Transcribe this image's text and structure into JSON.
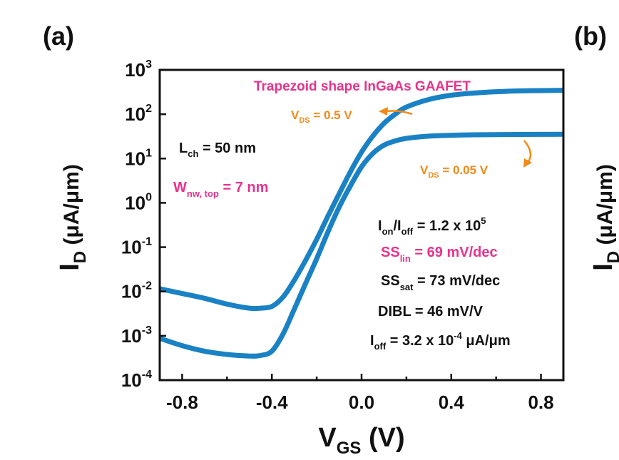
{
  "panel_labels": {
    "a": "(a)",
    "b": "(b)"
  },
  "chart_data": {
    "type": "line",
    "title": "Trapezoid shape InGaAs GAAFET",
    "xlabel": {
      "main": "V",
      "sub": "GS",
      "unit": " (V)"
    },
    "ylabel": {
      "main": "I",
      "sub": "D",
      "unit": " (μA/μm)"
    },
    "x_scale": "linear",
    "y_scale": "log",
    "xlim": [
      -0.9,
      0.9
    ],
    "ylim": [
      0.0001,
      1000
    ],
    "x_ticks": [
      -0.8,
      -0.4,
      0.0,
      0.4,
      0.8
    ],
    "x_tick_labels": [
      "-0.8",
      "-0.4",
      "0.0",
      "0.4",
      "0.8"
    ],
    "y_ticks": [
      {
        "value": 0.0001,
        "base": "10",
        "exp": "-4"
      },
      {
        "value": 0.001,
        "base": "10",
        "exp": "-3"
      },
      {
        "value": 0.01,
        "base": "10",
        "exp": "-2"
      },
      {
        "value": 0.1,
        "base": "10",
        "exp": "-1"
      },
      {
        "value": 1,
        "base": "10",
        "exp": "0"
      },
      {
        "value": 10,
        "base": "10",
        "exp": "1"
      },
      {
        "value": 100,
        "base": "10",
        "exp": "2"
      },
      {
        "value": 1000,
        "base": "10",
        "exp": "3"
      }
    ],
    "grid": false,
    "series": [
      {
        "color": "#1a82c4",
        "x": [
          -0.9,
          -0.8,
          -0.7,
          -0.6,
          -0.5,
          -0.45,
          -0.4,
          -0.35,
          -0.3,
          -0.25,
          -0.2,
          -0.15,
          -0.1,
          -0.05,
          0.0,
          0.05,
          0.1,
          0.15,
          0.2,
          0.3,
          0.4,
          0.5,
          0.6,
          0.7,
          0.8,
          0.9
        ],
        "values": [
          0.0115,
          0.009,
          0.007,
          0.0052,
          0.0042,
          0.0042,
          0.0046,
          0.0075,
          0.018,
          0.05,
          0.15,
          0.5,
          1.6,
          5.0,
          14,
          32,
          62,
          100,
          145,
          215,
          268,
          300,
          322,
          335,
          342,
          346
        ]
      },
      {
        "color": "#1a82c4",
        "x": [
          -0.9,
          -0.8,
          -0.7,
          -0.6,
          -0.5,
          -0.45,
          -0.4,
          -0.35,
          -0.3,
          -0.25,
          -0.2,
          -0.15,
          -0.1,
          -0.05,
          0.0,
          0.05,
          0.1,
          0.15,
          0.2,
          0.3,
          0.4,
          0.5,
          0.6,
          0.7,
          0.8,
          0.9
        ],
        "values": [
          0.00088,
          0.0006,
          0.00045,
          0.00038,
          0.00035,
          0.00036,
          0.00045,
          0.0011,
          0.004,
          0.015,
          0.055,
          0.22,
          0.8,
          2.4,
          6.5,
          13,
          20,
          25,
          28.5,
          32,
          33.5,
          34.3,
          34.7,
          35,
          35.1,
          35.2
        ]
      }
    ],
    "annotations": {
      "vds_high": {
        "pre": "V",
        "sub": "DS",
        "post": " = 0.5 V"
      },
      "vds_low": {
        "pre": "V",
        "sub": "DS",
        "post": " = 0.05 V"
      },
      "lch": {
        "pre": "L",
        "sub": "ch",
        "post": " = 50 nm"
      },
      "wnw": {
        "pre": "W",
        "sub": "nw, top",
        "post": " = 7 nm"
      },
      "ionoff": {
        "a": "I",
        "asub": "on",
        "b": "/I",
        "bsub": "off",
        "c": " = 1.2 x 10",
        "sup": "5"
      },
      "sslin": {
        "pre": "SS",
        "sub": "lin",
        "post": " = 69 mV/dec"
      },
      "sssat": {
        "pre": "SS",
        "sub": "sat",
        "post": " = 73 mV/dec"
      },
      "dibl": "DIBL = 46 mV/V",
      "ioff": {
        "pre": "I",
        "sub": "off",
        "mid": " = 3.2 x 10",
        "sup": "-4",
        "post": " μA/μm"
      }
    },
    "colors": {
      "curve": "#1a82c4",
      "title": "#e8338b",
      "vds": "#f28a17",
      "pink": "#e8338b",
      "black": "#111111"
    }
  }
}
